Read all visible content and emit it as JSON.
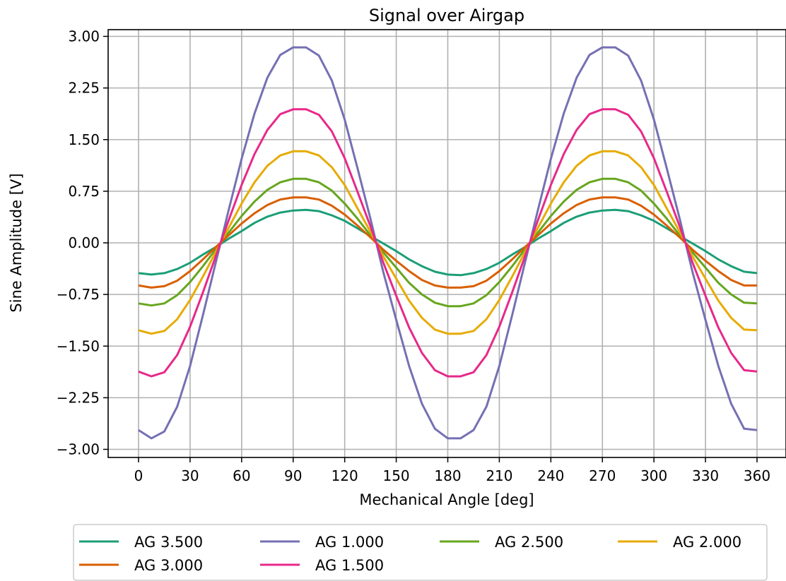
{
  "chart_data": {
    "type": "line",
    "title": "Signal over Airgap",
    "xlabel": "Mechanical Angle [deg]",
    "ylabel": "Sine Amplitude [V]",
    "xlim": [
      -15,
      375
    ],
    "ylim": [
      -3.1,
      3.1
    ],
    "grid": true,
    "legend_position": "bottom-outside",
    "x_ticks": [
      0,
      30,
      60,
      90,
      120,
      150,
      180,
      210,
      240,
      270,
      300,
      330,
      360
    ],
    "x_tick_labels": [
      "0",
      "30",
      "60",
      "90",
      "120",
      "150",
      "180",
      "210",
      "240",
      "270",
      "300",
      "330",
      "360"
    ],
    "y_ticks": [
      -3.0,
      -2.25,
      -1.5,
      -0.75,
      0.0,
      0.75,
      1.5,
      2.25,
      3.0
    ],
    "y_tick_labels": [
      "−3.00",
      "−2.25",
      "−1.50",
      "−0.75",
      "0.00",
      "0.75",
      "1.50",
      "2.25",
      "3.00"
    ],
    "x": [
      0,
      7.5,
      15,
      22.5,
      30,
      37.5,
      45,
      52.5,
      60,
      67.5,
      75,
      82.5,
      90,
      97.5,
      105,
      112.5,
      120,
      127.5,
      135,
      142.5,
      150,
      157.5,
      165,
      172.5,
      180,
      187.5,
      195,
      202.5,
      210,
      217.5,
      225,
      232.5,
      240,
      247.5,
      255,
      262.5,
      270,
      277.5,
      285,
      292.5,
      300,
      307.5,
      315,
      322.5,
      330,
      337.5,
      345,
      352.5,
      360
    ],
    "series": [
      {
        "name": "AG 3.500",
        "color": "#1b9e77",
        "values": [
          -0.44,
          -0.46,
          -0.44,
          -0.38,
          -0.29,
          -0.17,
          -0.06,
          0.06,
          0.17,
          0.29,
          0.38,
          0.44,
          0.47,
          0.48,
          0.46,
          0.4,
          0.32,
          0.21,
          0.1,
          -0.01,
          -0.12,
          -0.24,
          -0.34,
          -0.42,
          -0.46,
          -0.47,
          -0.44,
          -0.38,
          -0.29,
          -0.17,
          -0.06,
          0.06,
          0.17,
          0.29,
          0.38,
          0.44,
          0.47,
          0.48,
          0.46,
          0.4,
          0.32,
          0.21,
          0.1,
          -0.01,
          -0.12,
          -0.24,
          -0.34,
          -0.42,
          -0.44
        ]
      },
      {
        "name": "AG 1.000",
        "color": "#7570b3",
        "values": [
          -2.72,
          -2.84,
          -2.74,
          -2.38,
          -1.79,
          -1.05,
          -0.28,
          0.48,
          1.22,
          1.88,
          2.4,
          2.73,
          2.84,
          2.84,
          2.72,
          2.36,
          1.79,
          1.08,
          0.35,
          -0.43,
          -1.12,
          -1.79,
          -2.34,
          -2.7,
          -2.84,
          -2.84,
          -2.72,
          -2.38,
          -1.79,
          -1.05,
          -0.28,
          0.48,
          1.22,
          1.88,
          2.4,
          2.73,
          2.84,
          2.84,
          2.72,
          2.36,
          1.79,
          1.08,
          0.35,
          -0.43,
          -1.12,
          -1.79,
          -2.34,
          -2.7,
          -2.72
        ]
      },
      {
        "name": "AG 2.500",
        "color": "#66a61e",
        "values": [
          -0.88,
          -0.91,
          -0.88,
          -0.76,
          -0.57,
          -0.34,
          -0.09,
          0.15,
          0.39,
          0.6,
          0.77,
          0.88,
          0.93,
          0.93,
          0.88,
          0.76,
          0.57,
          0.35,
          0.11,
          -0.14,
          -0.36,
          -0.58,
          -0.75,
          -0.87,
          -0.92,
          -0.92,
          -0.88,
          -0.76,
          -0.57,
          -0.34,
          -0.09,
          0.15,
          0.39,
          0.6,
          0.77,
          0.88,
          0.93,
          0.93,
          0.88,
          0.76,
          0.57,
          0.35,
          0.11,
          -0.14,
          -0.36,
          -0.58,
          -0.75,
          -0.87,
          -0.88
        ]
      },
      {
        "name": "AG 2.000",
        "color": "#e6ab02",
        "values": [
          -1.27,
          -1.32,
          -1.28,
          -1.11,
          -0.83,
          -0.49,
          -0.13,
          0.22,
          0.57,
          0.88,
          1.12,
          1.27,
          1.33,
          1.33,
          1.27,
          1.1,
          0.84,
          0.5,
          0.16,
          -0.2,
          -0.52,
          -0.84,
          -1.09,
          -1.26,
          -1.32,
          -1.32,
          -1.28,
          -1.11,
          -0.83,
          -0.49,
          -0.13,
          0.22,
          0.57,
          0.88,
          1.12,
          1.27,
          1.33,
          1.33,
          1.27,
          1.1,
          0.84,
          0.5,
          0.16,
          -0.2,
          -0.52,
          -0.84,
          -1.09,
          -1.26,
          -1.27
        ]
      },
      {
        "name": "AG 3.000",
        "color": "#d95f02",
        "values": [
          -0.62,
          -0.65,
          -0.63,
          -0.55,
          -0.41,
          -0.24,
          -0.06,
          0.11,
          0.28,
          0.43,
          0.55,
          0.63,
          0.66,
          0.66,
          0.63,
          0.54,
          0.41,
          0.25,
          0.08,
          -0.1,
          -0.26,
          -0.41,
          -0.54,
          -0.62,
          -0.65,
          -0.65,
          -0.63,
          -0.55,
          -0.41,
          -0.24,
          -0.06,
          0.11,
          0.28,
          0.43,
          0.55,
          0.63,
          0.66,
          0.66,
          0.63,
          0.54,
          0.41,
          0.25,
          0.08,
          -0.1,
          -0.26,
          -0.41,
          -0.54,
          -0.62,
          -0.62
        ]
      },
      {
        "name": "AG 1.500",
        "color": "#e7298a",
        "values": [
          -1.87,
          -1.94,
          -1.88,
          -1.63,
          -1.22,
          -0.72,
          -0.19,
          0.33,
          0.84,
          1.29,
          1.64,
          1.87,
          1.94,
          1.94,
          1.86,
          1.62,
          1.23,
          0.74,
          0.24,
          -0.29,
          -0.77,
          -1.23,
          -1.6,
          -1.85,
          -1.94,
          -1.94,
          -1.88,
          -1.63,
          -1.22,
          -0.72,
          -0.19,
          0.33,
          0.84,
          1.29,
          1.64,
          1.87,
          1.94,
          1.94,
          1.86,
          1.62,
          1.23,
          0.74,
          0.24,
          -0.29,
          -0.77,
          -1.23,
          -1.6,
          -1.85,
          -1.87
        ]
      }
    ]
  }
}
